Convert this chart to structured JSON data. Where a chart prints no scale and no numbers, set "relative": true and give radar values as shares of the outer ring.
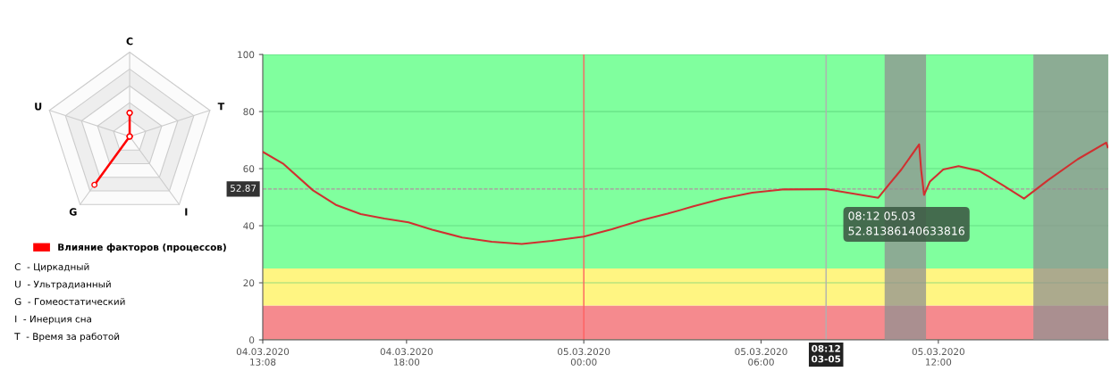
{
  "chart_data": [
    {
      "type": "radar",
      "relative": true,
      "categories": [
        "C",
        "T",
        "I",
        "G",
        "U"
      ],
      "marker": "circle",
      "legend": "bottom",
      "series": [
        {
          "name": "Влияние факторов (процессов)",
          "color": "#ff0000",
          "values": [
            0.28,
            0,
            0,
            0.71,
            0
          ]
        }
      ],
      "annotations": [
        "C  - Циркадный",
        "U  - Ультрадианный",
        "G  - Гомеостатический",
        "I  - Инерция сна",
        "T  - Время за работой"
      ]
    },
    {
      "type": "line",
      "grid": "y",
      "marker": "none",
      "line_style": "solid",
      "x": [
        "2020-03-04T13:08",
        "2020-03-04T13:49",
        "2020-03-04T14:50",
        "2020-03-04T15:38",
        "2020-03-04T16:27",
        "2020-03-04T17:15",
        "2020-03-04T18:04",
        "2020-03-04T18:52",
        "2020-03-04T19:53",
        "2020-03-04T20:53",
        "2020-03-04T21:54",
        "2020-03-04T22:55",
        "2020-03-05T00:00",
        "2020-03-05T00:57",
        "2020-03-05T01:58",
        "2020-03-05T02:50",
        "2020-03-05T03:41",
        "2020-03-05T04:41",
        "2020-03-05T05:42",
        "2020-03-05T06:43",
        "2020-03-05T08:12",
        "2020-03-05T09:58",
        "2020-03-05T10:20",
        "2020-03-05T10:45",
        "2020-03-05T11:21",
        "2020-03-05T11:25",
        "2020-03-05T11:31",
        "2020-03-05T11:43",
        "2020-03-05T12:10",
        "2020-03-05T12:41",
        "2020-03-05T13:23",
        "2020-03-05T14:11",
        "2020-03-05T14:54",
        "2020-03-05T15:43",
        "2020-03-05T16:43",
        "2020-03-05T17:41",
        "2020-03-05T17:44"
      ],
      "series": [
        {
          "color": "#d03030",
          "values": [
            65.9,
            61.8,
            52.4,
            47.2,
            44.1,
            42.5,
            41.2,
            38.6,
            35.9,
            34.4,
            33.6,
            34.7,
            36.2,
            38.8,
            42.0,
            44.2,
            46.7,
            49.5,
            51.6,
            52.7,
            52.8,
            49.8,
            54.5,
            59.7,
            68.5,
            59.7,
            50.8,
            55.5,
            59.7,
            60.9,
            59.2,
            54.2,
            49.5,
            56.0,
            63.3,
            69.1,
            67.5
          ]
        }
      ],
      "xlim": [
        "2020-03-04T13:08",
        "2020-03-05T17:45"
      ],
      "xticks": [
        {
          "value": "2020-03-04T13:08",
          "label": "04.03.2020\n13:08"
        },
        {
          "value": "2020-03-04T18:00",
          "label": "04.03.2020\n18:00"
        },
        {
          "value": "2020-03-05T00:00",
          "label": "05.03.2020\n00:00"
        },
        {
          "value": "2020-03-05T06:00",
          "label": "05.03.2020\n06:00"
        },
        {
          "value": "2020-03-05T12:00",
          "label": "05.03.2020\n12:00"
        }
      ],
      "ylim": [
        0,
        100
      ],
      "yticks": [
        0,
        20,
        40,
        60,
        80,
        100
      ],
      "bands": [
        {
          "axis": "y",
          "from": 0,
          "to": 12,
          "color": "#f58a8e"
        },
        {
          "axis": "y",
          "from": 12,
          "to": 25,
          "color": "#fff582"
        },
        {
          "axis": "y",
          "from": 25,
          "to": 100,
          "color": "#80ff9e"
        },
        {
          "axis": "x",
          "from": "2020-03-05T10:11",
          "to": "2020-03-05T11:35",
          "color": "#909090"
        },
        {
          "axis": "x",
          "from": "2020-03-05T15:13",
          "to": "2020-03-05T17:45",
          "color": "#909090"
        }
      ],
      "ref_lines": [
        {
          "axis": "x",
          "value": "2020-03-05T00:00",
          "color": "#ff6060",
          "line_style": "solid"
        },
        {
          "axis": "x",
          "value": "2020-03-05T08:12",
          "label": "08:12\n03-05",
          "color": "#b0b0b0",
          "line_style": "solid"
        },
        {
          "axis": "y",
          "value": 52.87,
          "label": "52.87",
          "color": "#b090a0",
          "line_style": "dashed"
        }
      ],
      "annotations": [
        "08:12 05.03\n52.81386140633816"
      ]
    }
  ]
}
